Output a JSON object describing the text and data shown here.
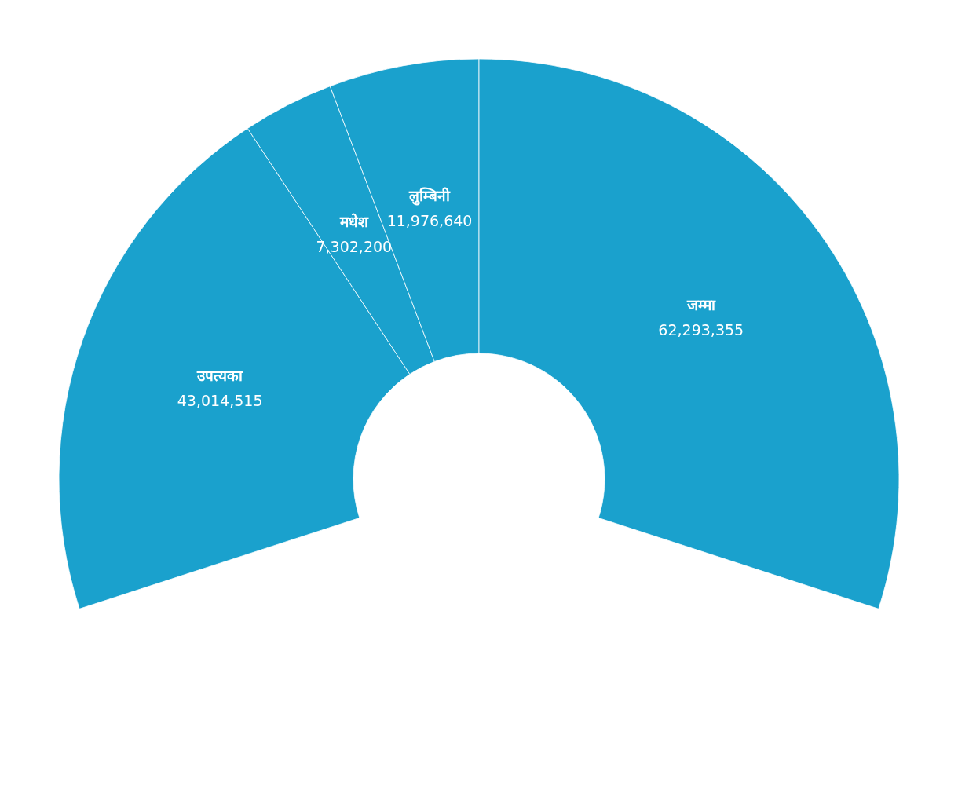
{
  "chart_data": {
    "type": "donut",
    "categories": [
      "उपत्यका",
      "मधेश",
      "लुम्बिनी",
      "जम्मा"
    ],
    "values": [
      43014515,
      7302200,
      11976640,
      62293355
    ],
    "colors": [
      "#1aa1cd",
      "#1aa1cd",
      "#1aa1cd",
      "#1aa1cd"
    ],
    "value_labels": [
      "43,014,515",
      "7,302,200",
      "11,976,640",
      "62,293,355"
    ]
  }
}
